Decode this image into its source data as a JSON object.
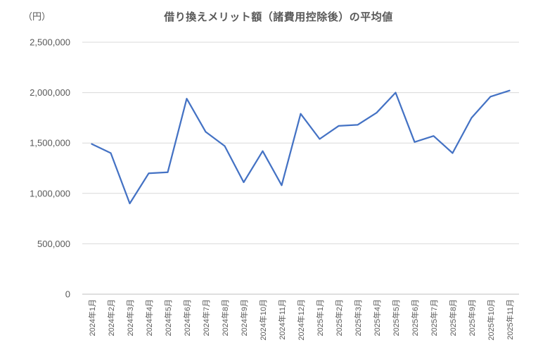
{
  "chart_data": {
    "type": "line",
    "title": "借り換えメリット額（諸費用控除後）の平均値",
    "unit_label": "（円）",
    "categories": [
      "2024年1月",
      "2024年2月",
      "2024年3月",
      "2024年4月",
      "2024年5月",
      "2024年6月",
      "2024年7月",
      "2024年8月",
      "2024年9月",
      "2024年10月",
      "2024年11月",
      "2024年12月",
      "2025年1月",
      "2025年2月",
      "2025年3月",
      "2025年4月",
      "2025年5月",
      "2025年6月",
      "2025年7月",
      "2025年8月",
      "2025年9月",
      "2025年10月",
      "2025年11月"
    ],
    "values": [
      1490000,
      1400000,
      900000,
      1200000,
      1210000,
      1940000,
      1610000,
      1470000,
      1110000,
      1420000,
      1080000,
      1790000,
      1540000,
      1670000,
      1680000,
      1800000,
      2000000,
      1510000,
      1570000,
      1400000,
      1750000,
      1960000,
      2020000
    ],
    "xlabel": "",
    "ylabel": "",
    "ylim": [
      0,
      2500000
    ],
    "ytick_interval": 500000,
    "yticks": [
      0,
      500000,
      1000000,
      1500000,
      2000000,
      2500000
    ],
    "ytick_labels": [
      "0",
      "500,000",
      "1,000,000",
      "1,500,000",
      "2,000,000",
      "2,500,000"
    ],
    "grid": "horizontal",
    "legend_position": "none",
    "colors": {
      "line": "#4472C4",
      "gridline": "#D9D9D9",
      "axis_line": "#BFBFBF",
      "text": "#595959"
    }
  }
}
